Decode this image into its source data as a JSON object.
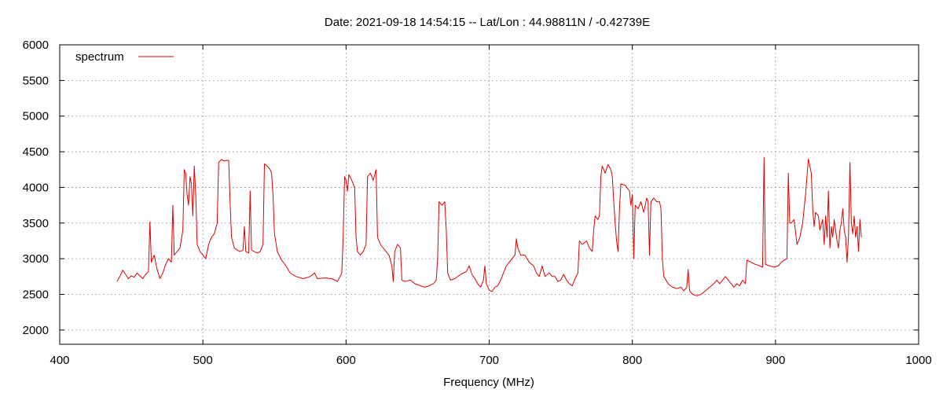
{
  "chart_data": {
    "type": "line",
    "title": "Date: 2021-09-18 14:54:15  --  Lat/Lon : 44.98811N / -0.42739E",
    "xlabel": "Frequency (MHz)",
    "ylabel": "",
    "xlim": [
      400,
      1000
    ],
    "ylim": [
      1800,
      6000
    ],
    "x_ticks": [
      400,
      500,
      600,
      700,
      800,
      900,
      1000
    ],
    "y_ticks": [
      2000,
      2500,
      3000,
      3500,
      4000,
      4500,
      5000,
      5500,
      6000
    ],
    "grid": true,
    "legend_position": "top-left",
    "series": [
      {
        "name": "spectrum",
        "color": "#e00000",
        "points": [
          [
            440,
            2680
          ],
          [
            442,
            2750
          ],
          [
            444,
            2840
          ],
          [
            446,
            2780
          ],
          [
            448,
            2720
          ],
          [
            450,
            2760
          ],
          [
            452,
            2740
          ],
          [
            454,
            2800
          ],
          [
            456,
            2760
          ],
          [
            458,
            2720
          ],
          [
            460,
            2780
          ],
          [
            462,
            2820
          ],
          [
            463,
            3520
          ],
          [
            464,
            2950
          ],
          [
            466,
            3050
          ],
          [
            468,
            2850
          ],
          [
            470,
            2720
          ],
          [
            472,
            2800
          ],
          [
            474,
            2920
          ],
          [
            476,
            3000
          ],
          [
            478,
            2950
          ],
          [
            479,
            3750
          ],
          [
            480,
            3050
          ],
          [
            482,
            3100
          ],
          [
            484,
            3150
          ],
          [
            486,
            3400
          ],
          [
            487,
            4250
          ],
          [
            488,
            4200
          ],
          [
            489,
            3900
          ],
          [
            490,
            3750
          ],
          [
            491,
            4150
          ],
          [
            492,
            4050
          ],
          [
            493,
            3600
          ],
          [
            494,
            4300
          ],
          [
            495,
            3900
          ],
          [
            496,
            3200
          ],
          [
            498,
            3100
          ],
          [
            500,
            3050
          ],
          [
            502,
            3000
          ],
          [
            504,
            3200
          ],
          [
            506,
            3300
          ],
          [
            508,
            3350
          ],
          [
            510,
            3500
          ],
          [
            511,
            4350
          ],
          [
            513,
            4390
          ],
          [
            515,
            4370
          ],
          [
            517,
            4380
          ],
          [
            518,
            4380
          ],
          [
            519,
            3800
          ],
          [
            520,
            3300
          ],
          [
            522,
            3150
          ],
          [
            524,
            3120
          ],
          [
            526,
            3100
          ],
          [
            528,
            3120
          ],
          [
            529,
            3450
          ],
          [
            530,
            3100
          ],
          [
            532,
            3080
          ],
          [
            533,
            3950
          ],
          [
            534,
            3120
          ],
          [
            536,
            3100
          ],
          [
            538,
            3080
          ],
          [
            540,
            3100
          ],
          [
            542,
            3200
          ],
          [
            543,
            4330
          ],
          [
            545,
            4300
          ],
          [
            547,
            4250
          ],
          [
            548,
            4200
          ],
          [
            549,
            3900
          ],
          [
            550,
            3350
          ],
          [
            552,
            3100
          ],
          [
            555,
            2980
          ],
          [
            558,
            2900
          ],
          [
            561,
            2800
          ],
          [
            565,
            2750
          ],
          [
            570,
            2720
          ],
          [
            575,
            2750
          ],
          [
            578,
            2800
          ],
          [
            580,
            2720
          ],
          [
            585,
            2730
          ],
          [
            590,
            2720
          ],
          [
            594,
            2680
          ],
          [
            597,
            2800
          ],
          [
            598,
            3300
          ],
          [
            599,
            4150
          ],
          [
            600,
            4100
          ],
          [
            601,
            3950
          ],
          [
            602,
            4180
          ],
          [
            604,
            4100
          ],
          [
            606,
            4000
          ],
          [
            607,
            3300
          ],
          [
            608,
            3100
          ],
          [
            610,
            3050
          ],
          [
            612,
            3100
          ],
          [
            614,
            3200
          ],
          [
            615,
            4150
          ],
          [
            617,
            4200
          ],
          [
            619,
            4100
          ],
          [
            621,
            4250
          ],
          [
            622,
            3300
          ],
          [
            624,
            3200
          ],
          [
            626,
            3150
          ],
          [
            628,
            3100
          ],
          [
            630,
            3050
          ],
          [
            632,
            2900
          ],
          [
            633,
            2680
          ],
          [
            634,
            3100
          ],
          [
            636,
            3200
          ],
          [
            638,
            3150
          ],
          [
            639,
            2700
          ],
          [
            641,
            2680
          ],
          [
            645,
            2700
          ],
          [
            648,
            2650
          ],
          [
            652,
            2620
          ],
          [
            655,
            2600
          ],
          [
            658,
            2620
          ],
          [
            661,
            2650
          ],
          [
            663,
            2700
          ],
          [
            664,
            3000
          ],
          [
            665,
            3800
          ],
          [
            667,
            3750
          ],
          [
            669,
            3800
          ],
          [
            670,
            3400
          ],
          [
            671,
            2800
          ],
          [
            673,
            2700
          ],
          [
            676,
            2720
          ],
          [
            680,
            2780
          ],
          [
            684,
            2820
          ],
          [
            686,
            2900
          ],
          [
            688,
            2780
          ],
          [
            690,
            2720
          ],
          [
            692,
            2650
          ],
          [
            694,
            2600
          ],
          [
            696,
            2700
          ],
          [
            697,
            2900
          ],
          [
            698,
            2650
          ],
          [
            700,
            2560
          ],
          [
            702,
            2540
          ],
          [
            704,
            2600
          ],
          [
            706,
            2620
          ],
          [
            708,
            2700
          ],
          [
            710,
            2800
          ],
          [
            712,
            2900
          ],
          [
            714,
            2950
          ],
          [
            716,
            3000
          ],
          [
            718,
            3050
          ],
          [
            719,
            3280
          ],
          [
            720,
            3150
          ],
          [
            722,
            3050
          ],
          [
            725,
            3050
          ],
          [
            728,
            2950
          ],
          [
            731,
            2900
          ],
          [
            733,
            2800
          ],
          [
            735,
            2750
          ],
          [
            737,
            2900
          ],
          [
            739,
            2750
          ],
          [
            742,
            2800
          ],
          [
            744,
            2750
          ],
          [
            746,
            2750
          ],
          [
            748,
            2680
          ],
          [
            750,
            2700
          ],
          [
            752,
            2780
          ],
          [
            754,
            2700
          ],
          [
            756,
            2650
          ],
          [
            758,
            2620
          ],
          [
            760,
            2720
          ],
          [
            762,
            2800
          ],
          [
            763,
            3250
          ],
          [
            765,
            3200
          ],
          [
            768,
            3250
          ],
          [
            770,
            3150
          ],
          [
            772,
            3100
          ],
          [
            773,
            3400
          ],
          [
            774,
            3600
          ],
          [
            776,
            3550
          ],
          [
            777,
            3600
          ],
          [
            778,
            4150
          ],
          [
            779,
            4300
          ],
          [
            781,
            4200
          ],
          [
            783,
            4320
          ],
          [
            785,
            4250
          ],
          [
            786,
            4150
          ],
          [
            787,
            3800
          ],
          [
            788,
            3500
          ],
          [
            789,
            3250
          ],
          [
            790,
            3100
          ],
          [
            791,
            3700
          ],
          [
            792,
            4050
          ],
          [
            795,
            4030
          ],
          [
            798,
            3950
          ],
          [
            799,
            3750
          ],
          [
            800,
            3900
          ],
          [
            801,
            3000
          ],
          [
            802,
            3750
          ],
          [
            804,
            3700
          ],
          [
            806,
            3800
          ],
          [
            808,
            3650
          ],
          [
            810,
            3850
          ],
          [
            811,
            3800
          ],
          [
            812,
            3050
          ],
          [
            813,
            3800
          ],
          [
            815,
            3850
          ],
          [
            817,
            3800
          ],
          [
            819,
            3800
          ],
          [
            820,
            3700
          ],
          [
            821,
            3000
          ],
          [
            822,
            2750
          ],
          [
            825,
            2650
          ],
          [
            828,
            2600
          ],
          [
            831,
            2580
          ],
          [
            834,
            2600
          ],
          [
            836,
            2550
          ],
          [
            838,
            2600
          ],
          [
            839,
            2850
          ],
          [
            840,
            2550
          ],
          [
            842,
            2500
          ],
          [
            845,
            2480
          ],
          [
            848,
            2500
          ],
          [
            851,
            2550
          ],
          [
            854,
            2600
          ],
          [
            857,
            2650
          ],
          [
            859,
            2700
          ],
          [
            861,
            2650
          ],
          [
            863,
            2700
          ],
          [
            865,
            2750
          ],
          [
            867,
            2700
          ],
          [
            869,
            2650
          ],
          [
            871,
            2600
          ],
          [
            873,
            2650
          ],
          [
            875,
            2620
          ],
          [
            877,
            2700
          ],
          [
            879,
            2650
          ],
          [
            880,
            2980
          ],
          [
            883,
            2950
          ],
          [
            886,
            2920
          ],
          [
            889,
            2900
          ],
          [
            891,
            2880
          ],
          [
            892,
            4420
          ],
          [
            893,
            2920
          ],
          [
            896,
            2900
          ],
          [
            899,
            2880
          ],
          [
            902,
            2900
          ],
          [
            904,
            2950
          ],
          [
            906,
            2980
          ],
          [
            908,
            3000
          ],
          [
            909,
            4200
          ],
          [
            910,
            3500
          ],
          [
            911,
            3500
          ],
          [
            913,
            3550
          ],
          [
            915,
            3200
          ],
          [
            917,
            3300
          ],
          [
            919,
            3500
          ],
          [
            921,
            3900
          ],
          [
            923,
            4400
          ],
          [
            925,
            4200
          ],
          [
            926,
            3700
          ],
          [
            927,
            3450
          ],
          [
            928,
            3650
          ],
          [
            930,
            3600
          ],
          [
            931,
            3400
          ],
          [
            933,
            3550
          ],
          [
            934,
            3200
          ],
          [
            935,
            3600
          ],
          [
            936,
            3300
          ],
          [
            937,
            3950
          ],
          [
            938,
            3150
          ],
          [
            939,
            3450
          ],
          [
            940,
            3300
          ],
          [
            941,
            3550
          ],
          [
            943,
            3250
          ],
          [
            944,
            3150
          ],
          [
            945,
            3400
          ],
          [
            946,
            3500
          ],
          [
            947,
            3700
          ],
          [
            948,
            3400
          ],
          [
            949,
            3300
          ],
          [
            950,
            2950
          ],
          [
            951,
            3300
          ],
          [
            952,
            4350
          ],
          [
            953,
            3500
          ],
          [
            954,
            3350
          ],
          [
            955,
            3600
          ],
          [
            956,
            3300
          ],
          [
            957,
            3450
          ],
          [
            958,
            3100
          ],
          [
            959,
            3550
          ],
          [
            960,
            3300
          ]
        ]
      }
    ]
  }
}
